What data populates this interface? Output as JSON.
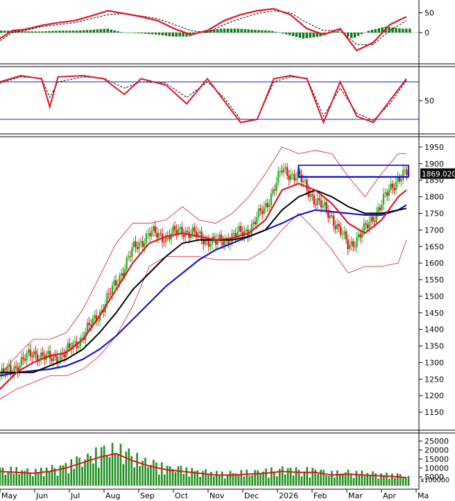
{
  "chart_data": [
    {
      "type": "line",
      "panel": "macd",
      "yticks": [
        50,
        0
      ],
      "ylim": [
        -75,
        75
      ],
      "series": [],
      "colors": {
        "line": "#e0141e",
        "signal": "#000000",
        "hist": "#117a18"
      },
      "x_norm": [
        0,
        0.03,
        0.06,
        0.1,
        0.14,
        0.18,
        0.22,
        0.26,
        0.3,
        0.34,
        0.38,
        0.42,
        0.46,
        0.5,
        0.54,
        0.58,
        0.62,
        0.66,
        0.7,
        0.74,
        0.78,
        0.82,
        0.86,
        0.9,
        0.94,
        0.98
      ],
      "line_values": [
        -15,
        5,
        8,
        18,
        25,
        30,
        42,
        55,
        48,
        40,
        30,
        10,
        -5,
        5,
        30,
        45,
        55,
        60,
        45,
        10,
        -5,
        10,
        -45,
        -25,
        20,
        40
      ],
      "signal_values": [
        -20,
        0,
        5,
        15,
        20,
        25,
        35,
        45,
        48,
        42,
        35,
        20,
        5,
        0,
        20,
        35,
        48,
        55,
        50,
        25,
        5,
        5,
        -30,
        -30,
        5,
        30
      ],
      "hist_values": [
        5,
        5,
        3,
        3,
        5,
        5,
        7,
        10,
        0,
        -2,
        -5,
        -10,
        -10,
        5,
        10,
        10,
        7,
        5,
        -5,
        -15,
        -10,
        5,
        -15,
        5,
        15,
        10
      ]
    },
    {
      "type": "line",
      "panel": "stochastic",
      "yticks": [
        50
      ],
      "ylim": [
        0,
        100
      ],
      "levels": [
        80,
        20
      ],
      "series": [],
      "x_norm": [
        0,
        0.05,
        0.1,
        0.12,
        0.14,
        0.2,
        0.25,
        0.3,
        0.34,
        0.4,
        0.45,
        0.5,
        0.54,
        0.58,
        0.62,
        0.66,
        0.7,
        0.74,
        0.78,
        0.82,
        0.86,
        0.9,
        0.94,
        0.98
      ],
      "k_values": [
        80,
        90,
        85,
        40,
        88,
        90,
        85,
        60,
        85,
        75,
        45,
        85,
        50,
        15,
        20,
        85,
        90,
        85,
        15,
        80,
        25,
        15,
        50,
        85
      ],
      "d_values": [
        78,
        88,
        86,
        55,
        80,
        88,
        86,
        70,
        80,
        78,
        55,
        80,
        55,
        20,
        20,
        80,
        88,
        86,
        25,
        70,
        30,
        18,
        45,
        82
      ]
    },
    {
      "type": "line",
      "panel": "price",
      "yticks": [
        1950,
        1900,
        1850,
        1800,
        1750,
        1700,
        1650,
        1600,
        1550,
        1500,
        1450,
        1400,
        1350,
        1300,
        1250,
        1200,
        1150
      ],
      "ylim": [
        1100,
        1975
      ],
      "last_price": "1869.020",
      "xticks": [
        "May",
        "Jun",
        "Jul",
        "Aug",
        "Sep",
        "Oct",
        "Nov",
        "Dec",
        "2026",
        "Feb",
        "Mar",
        "Apr",
        "Ma"
      ],
      "x_norm": [
        0,
        0.04,
        0.08,
        0.12,
        0.16,
        0.2,
        0.24,
        0.28,
        0.32,
        0.36,
        0.4,
        0.44,
        0.48,
        0.52,
        0.56,
        0.6,
        0.64,
        0.68,
        0.72,
        0.76,
        0.8,
        0.84,
        0.88,
        0.92,
        0.96,
        0.98
      ],
      "close": [
        1260,
        1290,
        1330,
        1310,
        1330,
        1380,
        1450,
        1540,
        1640,
        1690,
        1680,
        1700,
        1680,
        1660,
        1680,
        1700,
        1770,
        1880,
        1860,
        1790,
        1740,
        1650,
        1700,
        1780,
        1860,
        1869
      ],
      "ma_fast": [
        1220,
        1270,
        1300,
        1320,
        1330,
        1370,
        1440,
        1520,
        1600,
        1660,
        1680,
        1690,
        1680,
        1670,
        1675,
        1690,
        1730,
        1820,
        1840,
        1820,
        1780,
        1720,
        1690,
        1730,
        1800,
        1820
      ],
      "ma_mid": [
        1270,
        1270,
        1270,
        1290,
        1310,
        1340,
        1390,
        1450,
        1520,
        1570,
        1620,
        1660,
        1670,
        1670,
        1670,
        1680,
        1700,
        1760,
        1800,
        1820,
        1800,
        1770,
        1750,
        1750,
        1760,
        1765
      ],
      "ma_slow": [
        1260,
        1270,
        1275,
        1280,
        1290,
        1310,
        1340,
        1380,
        1430,
        1480,
        1530,
        1570,
        1610,
        1640,
        1660,
        1680,
        1700,
        1720,
        1745,
        1760,
        1755,
        1750,
        1745,
        1745,
        1760,
        1775
      ],
      "bb_upper": [
        1260,
        1320,
        1370,
        1370,
        1390,
        1460,
        1560,
        1660,
        1720,
        1720,
        1730,
        1770,
        1730,
        1720,
        1750,
        1800,
        1870,
        1950,
        1930,
        1940,
        1930,
        1860,
        1800,
        1870,
        1930,
        1930
      ],
      "bb_lower": [
        1190,
        1220,
        1240,
        1260,
        1260,
        1280,
        1320,
        1380,
        1470,
        1590,
        1620,
        1620,
        1620,
        1610,
        1610,
        1610,
        1640,
        1700,
        1750,
        1700,
        1640,
        1570,
        1590,
        1590,
        1600,
        1670
      ],
      "box": {
        "x0": 0.72,
        "x1": 0.985,
        "y0": 1860,
        "y1": 1895
      }
    },
    {
      "type": "bar",
      "panel": "volume",
      "yticks": [
        25000,
        20000,
        15000,
        10000,
        5000
      ],
      "unit_label": "x100000",
      "ylim": [
        0,
        28000
      ],
      "ma_values": [
        8000,
        7500,
        7000,
        8000,
        10000,
        13000,
        16000,
        18000,
        14000,
        11000,
        9000,
        8000,
        7000,
        6000,
        6000,
        6500,
        7000,
        8000,
        7500,
        7500,
        6000,
        6500,
        6000,
        5500,
        5000,
        4500
      ],
      "bar_color": "#1f8f1f",
      "ma_color": "#e0141e"
    }
  ]
}
